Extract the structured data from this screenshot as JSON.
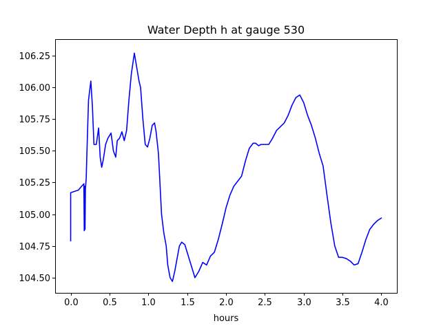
{
  "chart_data": {
    "type": "line",
    "title": "Water Depth h at gauge 530",
    "xlabel": "hours",
    "ylabel": "",
    "xlim": [
      -0.2,
      4.2
    ],
    "ylim": [
      104.38,
      106.38
    ],
    "xticks": [
      0.0,
      0.5,
      1.0,
      1.5,
      2.0,
      2.5,
      3.0,
      3.5,
      4.0
    ],
    "xtick_labels": [
      "0.0",
      "0.5",
      "1.0",
      "1.5",
      "2.0",
      "2.5",
      "3.0",
      "3.5",
      "4.0"
    ],
    "yticks": [
      104.5,
      104.75,
      105.0,
      105.25,
      105.5,
      105.75,
      106.0,
      106.25
    ],
    "ytick_labels": [
      "104.50",
      "104.75",
      "105.00",
      "105.25",
      "105.50",
      "105.75",
      "106.00",
      "106.25"
    ],
    "grid": false,
    "legend": "none",
    "series": [
      {
        "color": "#0000ff",
        "x": [
          0.0,
          0.0,
          0.05,
          0.1,
          0.14,
          0.17,
          0.175,
          0.18,
          0.185,
          0.19,
          0.2,
          0.21,
          0.23,
          0.26,
          0.28,
          0.3,
          0.33,
          0.36,
          0.38,
          0.4,
          0.42,
          0.45,
          0.48,
          0.52,
          0.55,
          0.58,
          0.6,
          0.63,
          0.66,
          0.69,
          0.72,
          0.75,
          0.78,
          0.82,
          0.85,
          0.88,
          0.9,
          0.93,
          0.96,
          0.99,
          1.02,
          1.05,
          1.08,
          1.1,
          1.13,
          1.17,
          1.2,
          1.23,
          1.25,
          1.28,
          1.31,
          1.34,
          1.37,
          1.4,
          1.43,
          1.47,
          1.5,
          1.55,
          1.6,
          1.65,
          1.7,
          1.75,
          1.8,
          1.85,
          1.9,
          1.95,
          2.0,
          2.05,
          2.1,
          2.15,
          2.2,
          2.25,
          2.3,
          2.35,
          2.38,
          2.42,
          2.45,
          2.5,
          2.55,
          2.6,
          2.65,
          2.7,
          2.75,
          2.8,
          2.85,
          2.9,
          2.95,
          3.0,
          3.05,
          3.1,
          3.15,
          3.2,
          3.25,
          3.3,
          3.35,
          3.4,
          3.45,
          3.5,
          3.55,
          3.6,
          3.65,
          3.7,
          3.75,
          3.8,
          3.85,
          3.9,
          3.95,
          4.0
        ],
        "y": [
          104.79,
          105.17,
          105.18,
          105.19,
          105.22,
          105.24,
          104.87,
          105.22,
          104.88,
          105.2,
          105.28,
          105.5,
          105.9,
          106.05,
          105.85,
          105.55,
          105.55,
          105.68,
          105.45,
          105.37,
          105.43,
          105.55,
          105.6,
          105.64,
          105.5,
          105.45,
          105.58,
          105.6,
          105.65,
          105.58,
          105.66,
          105.9,
          106.1,
          106.27,
          106.16,
          106.05,
          106.0,
          105.75,
          105.55,
          105.53,
          105.6,
          105.7,
          105.72,
          105.65,
          105.48,
          105.0,
          104.85,
          104.75,
          104.6,
          104.5,
          104.47,
          104.55,
          104.65,
          104.75,
          104.78,
          104.76,
          104.7,
          104.6,
          104.5,
          104.55,
          104.62,
          104.6,
          104.67,
          104.7,
          104.8,
          104.92,
          105.05,
          105.15,
          105.22,
          105.26,
          105.3,
          105.42,
          105.52,
          105.56,
          105.56,
          105.54,
          105.55,
          105.55,
          105.55,
          105.6,
          105.66,
          105.69,
          105.72,
          105.78,
          105.86,
          105.92,
          105.94,
          105.88,
          105.78,
          105.7,
          105.6,
          105.48,
          105.38,
          105.15,
          104.93,
          104.75,
          104.66,
          104.66,
          104.65,
          104.63,
          104.6,
          104.61,
          104.7,
          104.8,
          104.88,
          104.92,
          104.95,
          104.97
        ]
      }
    ]
  }
}
